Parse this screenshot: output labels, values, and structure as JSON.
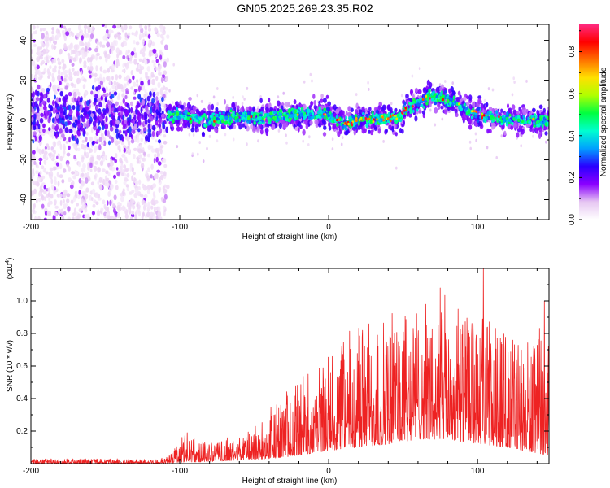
{
  "chart_data": [
    {
      "type": "heatmap",
      "title": "GN05.2025.269.23.35.R02",
      "xlabel": "Height of straight line (km)",
      "ylabel": "Frequency (Hz)",
      "xlim": [
        -200,
        148
      ],
      "ylim": [
        -50,
        48
      ],
      "xticks": [
        -200,
        -100,
        0,
        100
      ],
      "xtick_labels": [
        "-200",
        "-100",
        "0",
        "100"
      ],
      "yticks": [
        -40,
        -20,
        0,
        20,
        40
      ],
      "ytick_labels": [
        "-40",
        "-20",
        "0",
        "20",
        "40"
      ],
      "colorbar": {
        "label": "Normalized spectral amplitude",
        "range": [
          0,
          0.93
        ],
        "ticks": [
          0,
          0.2,
          0.4,
          0.6,
          0.8
        ],
        "tick_labels": [
          "0.0",
          "0.2",
          "0.4",
          "0.6",
          "0.8"
        ],
        "colormap": [
          "#ffffff",
          "#e6c6f2",
          "#8a00ff",
          "#2a00ff",
          "#00a0ff",
          "#00ffd0",
          "#00ff40",
          "#b0ff00",
          "#ffe000",
          "#ff7000",
          "#ff0000",
          "#ff2a80"
        ]
      },
      "noise_region_x": [
        -200,
        -108
      ],
      "band_center_hz": [
        {
          "x": -200,
          "f": 2
        },
        {
          "x": -150,
          "f": 2
        },
        {
          "x": -108,
          "f": 3
        },
        {
          "x": -100,
          "f": 2
        },
        {
          "x": -80,
          "f": 0
        },
        {
          "x": -60,
          "f": 2
        },
        {
          "x": -40,
          "f": 1
        },
        {
          "x": -20,
          "f": 3
        },
        {
          "x": 0,
          "f": 3
        },
        {
          "x": 10,
          "f": -2
        },
        {
          "x": 20,
          "f": 0
        },
        {
          "x": 35,
          "f": 1
        },
        {
          "x": 48,
          "f": 1
        },
        {
          "x": 52,
          "f": 6
        },
        {
          "x": 60,
          "f": 8
        },
        {
          "x": 67,
          "f": 12
        },
        {
          "x": 75,
          "f": 11
        },
        {
          "x": 85,
          "f": 9
        },
        {
          "x": 95,
          "f": 4
        },
        {
          "x": 110,
          "f": 1
        },
        {
          "x": 130,
          "f": 0
        },
        {
          "x": 148,
          "f": -1
        }
      ]
    },
    {
      "type": "line",
      "xlabel": "Height of straight line (km)",
      "ylabel": "SNR (10 * v/v)",
      "y_multiplier": "(x10^4)",
      "y_multiplier_base": "(x10",
      "y_multiplier_exp": "4",
      "y_multiplier_close": ")",
      "xlim": [
        -200,
        148
      ],
      "ylim": [
        0,
        1.2
      ],
      "xticks": [
        -200,
        -100,
        0,
        100
      ],
      "xtick_labels": [
        "-200",
        "-100",
        "0",
        "100"
      ],
      "yticks": [
        0.2,
        0.4,
        0.6,
        0.8,
        1.0
      ],
      "ytick_labels": [
        "0.2",
        "0.4",
        "0.6",
        "0.8",
        "1.0"
      ],
      "line_color": "#ee2222",
      "envelope": [
        {
          "x": -200,
          "lo": 0.0,
          "hi": 0.03
        },
        {
          "x": -110,
          "lo": 0.0,
          "hi": 0.03
        },
        {
          "x": -95,
          "lo": 0.01,
          "hi": 0.19
        },
        {
          "x": -85,
          "lo": 0.01,
          "hi": 0.12
        },
        {
          "x": -60,
          "lo": 0.02,
          "hi": 0.16
        },
        {
          "x": -40,
          "lo": 0.03,
          "hi": 0.3
        },
        {
          "x": -20,
          "lo": 0.05,
          "hi": 0.55
        },
        {
          "x": 0,
          "lo": 0.08,
          "hi": 0.65
        },
        {
          "x": 20,
          "lo": 0.1,
          "hi": 0.85
        },
        {
          "x": 40,
          "lo": 0.12,
          "hi": 0.9
        },
        {
          "x": 60,
          "lo": 0.15,
          "hi": 1.0
        },
        {
          "x": 80,
          "lo": 0.15,
          "hi": 0.95
        },
        {
          "x": 100,
          "lo": 0.12,
          "hi": 0.9
        },
        {
          "x": 120,
          "lo": 0.1,
          "hi": 0.8
        },
        {
          "x": 148,
          "lo": 0.05,
          "hi": 0.75
        }
      ],
      "peaks": [
        {
          "x": -95,
          "y": 0.19
        },
        {
          "x": -75,
          "y": 0.12
        },
        {
          "x": 75,
          "y": 1.08
        },
        {
          "x": 87,
          "y": 0.95
        },
        {
          "x": 104,
          "y": 1.2
        },
        {
          "x": 145,
          "y": 1.0
        }
      ]
    }
  ]
}
